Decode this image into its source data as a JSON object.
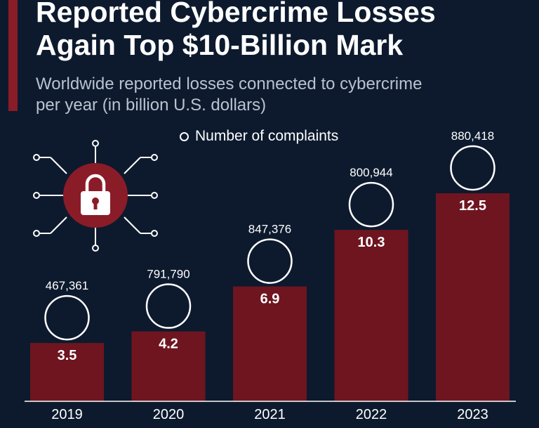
{
  "header": {
    "title_line1": "Reported Cybercrime Losses",
    "title_line2": "Again Top $10-Billion Mark",
    "subtitle_line1": "Worldwide reported losses connected to cybercrime",
    "subtitle_line2": "per year (in billion U.S. dollars)"
  },
  "legend": {
    "label": "Number of complaints"
  },
  "colors": {
    "background": "#0d1a2e",
    "bar": "#6e1520",
    "accent": "#8a1c28",
    "text": "#ffffff"
  },
  "icons": {
    "illustration": "padlock-circuit-icon"
  },
  "chart_data": {
    "type": "bar",
    "title": "Reported Cybercrime Losses Again Top $10-Billion Mark",
    "ylabel": "billion U.S. dollars",
    "categories": [
      "2019",
      "2020",
      "2021",
      "2022",
      "2023"
    ],
    "series": [
      {
        "name": "Reported losses (billion U.S. dollars)",
        "values": [
          3.5,
          4.2,
          6.9,
          10.3,
          12.5
        ]
      },
      {
        "name": "Number of complaints",
        "values": [
          467361,
          791790,
          847376,
          800944,
          880418
        ]
      }
    ],
    "value_labels": [
      "3.5",
      "4.2",
      "6.9",
      "10.3",
      "12.5"
    ],
    "complaint_labels": [
      "467,361",
      "791,790",
      "847,376",
      "800,944",
      "880,418"
    ],
    "ylim": [
      0,
      12.5
    ]
  }
}
